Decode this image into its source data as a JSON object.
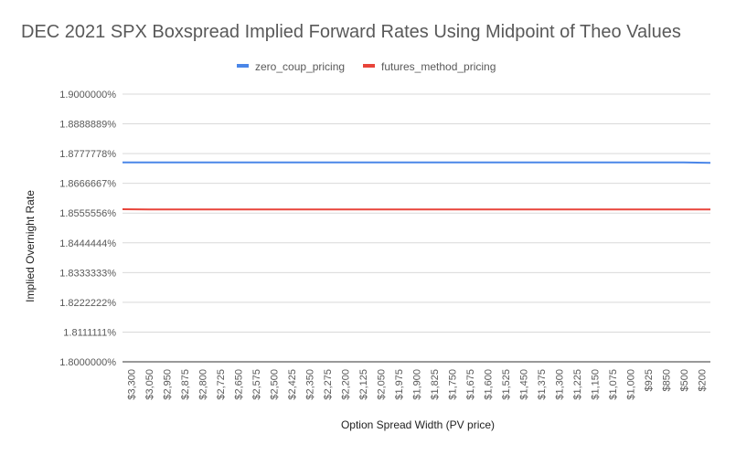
{
  "chart_data": {
    "type": "line",
    "title": "DEC 2021 SPX Boxspread Implied Forward Rates Using Midpoint of Theo Values",
    "xlabel": "Option Spread Width (PV price)",
    "ylabel": "Implied Overnight Rate",
    "y_ticks": [
      "1.8000000%",
      "1.8111111%",
      "1.8222222%",
      "1.8333333%",
      "1.8444444%",
      "1.8555556%",
      "1.8666667%",
      "1.8777778%",
      "1.8888889%",
      "1.9000000%"
    ],
    "ylim": [
      0.018,
      0.019
    ],
    "grid": true,
    "legend_position": "top",
    "x_labels": [
      "$3,300",
      "$3,050",
      "$2,950",
      "$2,875",
      "$2,800",
      "$2,725",
      "$2,650",
      "$2,575",
      "$2,500",
      "$2,425",
      "$2,350",
      "$2,275",
      "$2,200",
      "$2,125",
      "$2,050",
      "$1,975",
      "$1,900",
      "$1,825",
      "$1,750",
      "$1,675",
      "$1,600",
      "$1,525",
      "$1,450",
      "$1,375",
      "$1,300",
      "$1,225",
      "$1,150",
      "$1,075",
      "$1,000",
      "$925",
      "$850",
      "$500",
      "$200"
    ],
    "series": [
      {
        "name": "zero_coup_pricing",
        "color": "#4a86e8",
        "values": [
          0.018745,
          0.018745,
          0.018745,
          0.018745,
          0.018745,
          0.018745,
          0.018745,
          0.018745,
          0.018745,
          0.018745,
          0.018745,
          0.018745,
          0.018745,
          0.018745,
          0.018745,
          0.018745,
          0.018745,
          0.018745,
          0.018745,
          0.018745,
          0.018745,
          0.018745,
          0.018745,
          0.018745,
          0.018745,
          0.018745,
          0.018745,
          0.018745,
          0.018745,
          0.018745,
          0.018745,
          0.018745,
          0.018743
        ]
      },
      {
        "name": "futures_method_pricing",
        "color": "#e8443a",
        "values": [
          0.01857,
          0.018569,
          0.018569,
          0.018569,
          0.018569,
          0.018569,
          0.018569,
          0.018569,
          0.018569,
          0.018569,
          0.018569,
          0.018569,
          0.018569,
          0.018569,
          0.018569,
          0.018569,
          0.018569,
          0.018569,
          0.018569,
          0.018569,
          0.018569,
          0.018569,
          0.018569,
          0.018569,
          0.018569,
          0.018569,
          0.018569,
          0.018569,
          0.018569,
          0.018569,
          0.018569,
          0.018569,
          0.018569
        ]
      }
    ]
  }
}
